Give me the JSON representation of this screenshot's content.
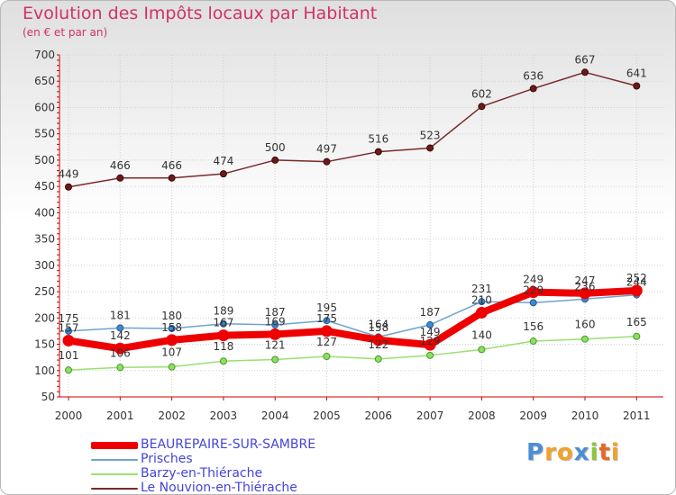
{
  "chart_data": {
    "type": "line",
    "title": "Evolution des Impôts locaux par Habitant",
    "subtitle": "(en € et par an)",
    "xlabel": "",
    "ylabel": "",
    "categories": [
      "2000",
      "2001",
      "2002",
      "2003",
      "2004",
      "2005",
      "2006",
      "2007",
      "2008",
      "2009",
      "2010",
      "2011"
    ],
    "ylim": [
      50,
      700
    ],
    "yticks": [
      50,
      100,
      150,
      200,
      250,
      300,
      350,
      400,
      450,
      500,
      550,
      600,
      650,
      700
    ],
    "grid": true,
    "legend_position": "bottom-left",
    "series": [
      {
        "name": "BEAUREPAIRE-SUR-SAMBRE",
        "color": "#ee0000",
        "values": [
          157,
          142,
          158,
          167,
          169,
          175,
          158,
          149,
          210,
          249,
          247,
          252
        ]
      },
      {
        "name": "Prisches",
        "color": "#6fa3cf",
        "values": [
          175,
          181,
          180,
          189,
          187,
          195,
          164,
          187,
          231,
          229,
          236,
          244
        ]
      },
      {
        "name": "Barzy-en-Thiérache",
        "color": "#99e070",
        "values": [
          101,
          106,
          107,
          118,
          121,
          127,
          122,
          129,
          140,
          156,
          160,
          165
        ]
      },
      {
        "name": "Le Nouvion-en-Thiérache",
        "color": "#7a2a2a",
        "values": [
          449,
          466,
          466,
          474,
          500,
          497,
          516,
          523,
          602,
          636,
          667,
          641
        ]
      }
    ]
  },
  "branding": {
    "logo_letters": [
      "P",
      "r",
      "o",
      "x",
      "i",
      "t",
      "i"
    ],
    "logo_colors": [
      "#4a8fd4",
      "#f2a22c",
      "#f2a22c",
      "#4a8fd4",
      "#8cc63f",
      "#e8682a",
      "#f2a22c"
    ]
  }
}
